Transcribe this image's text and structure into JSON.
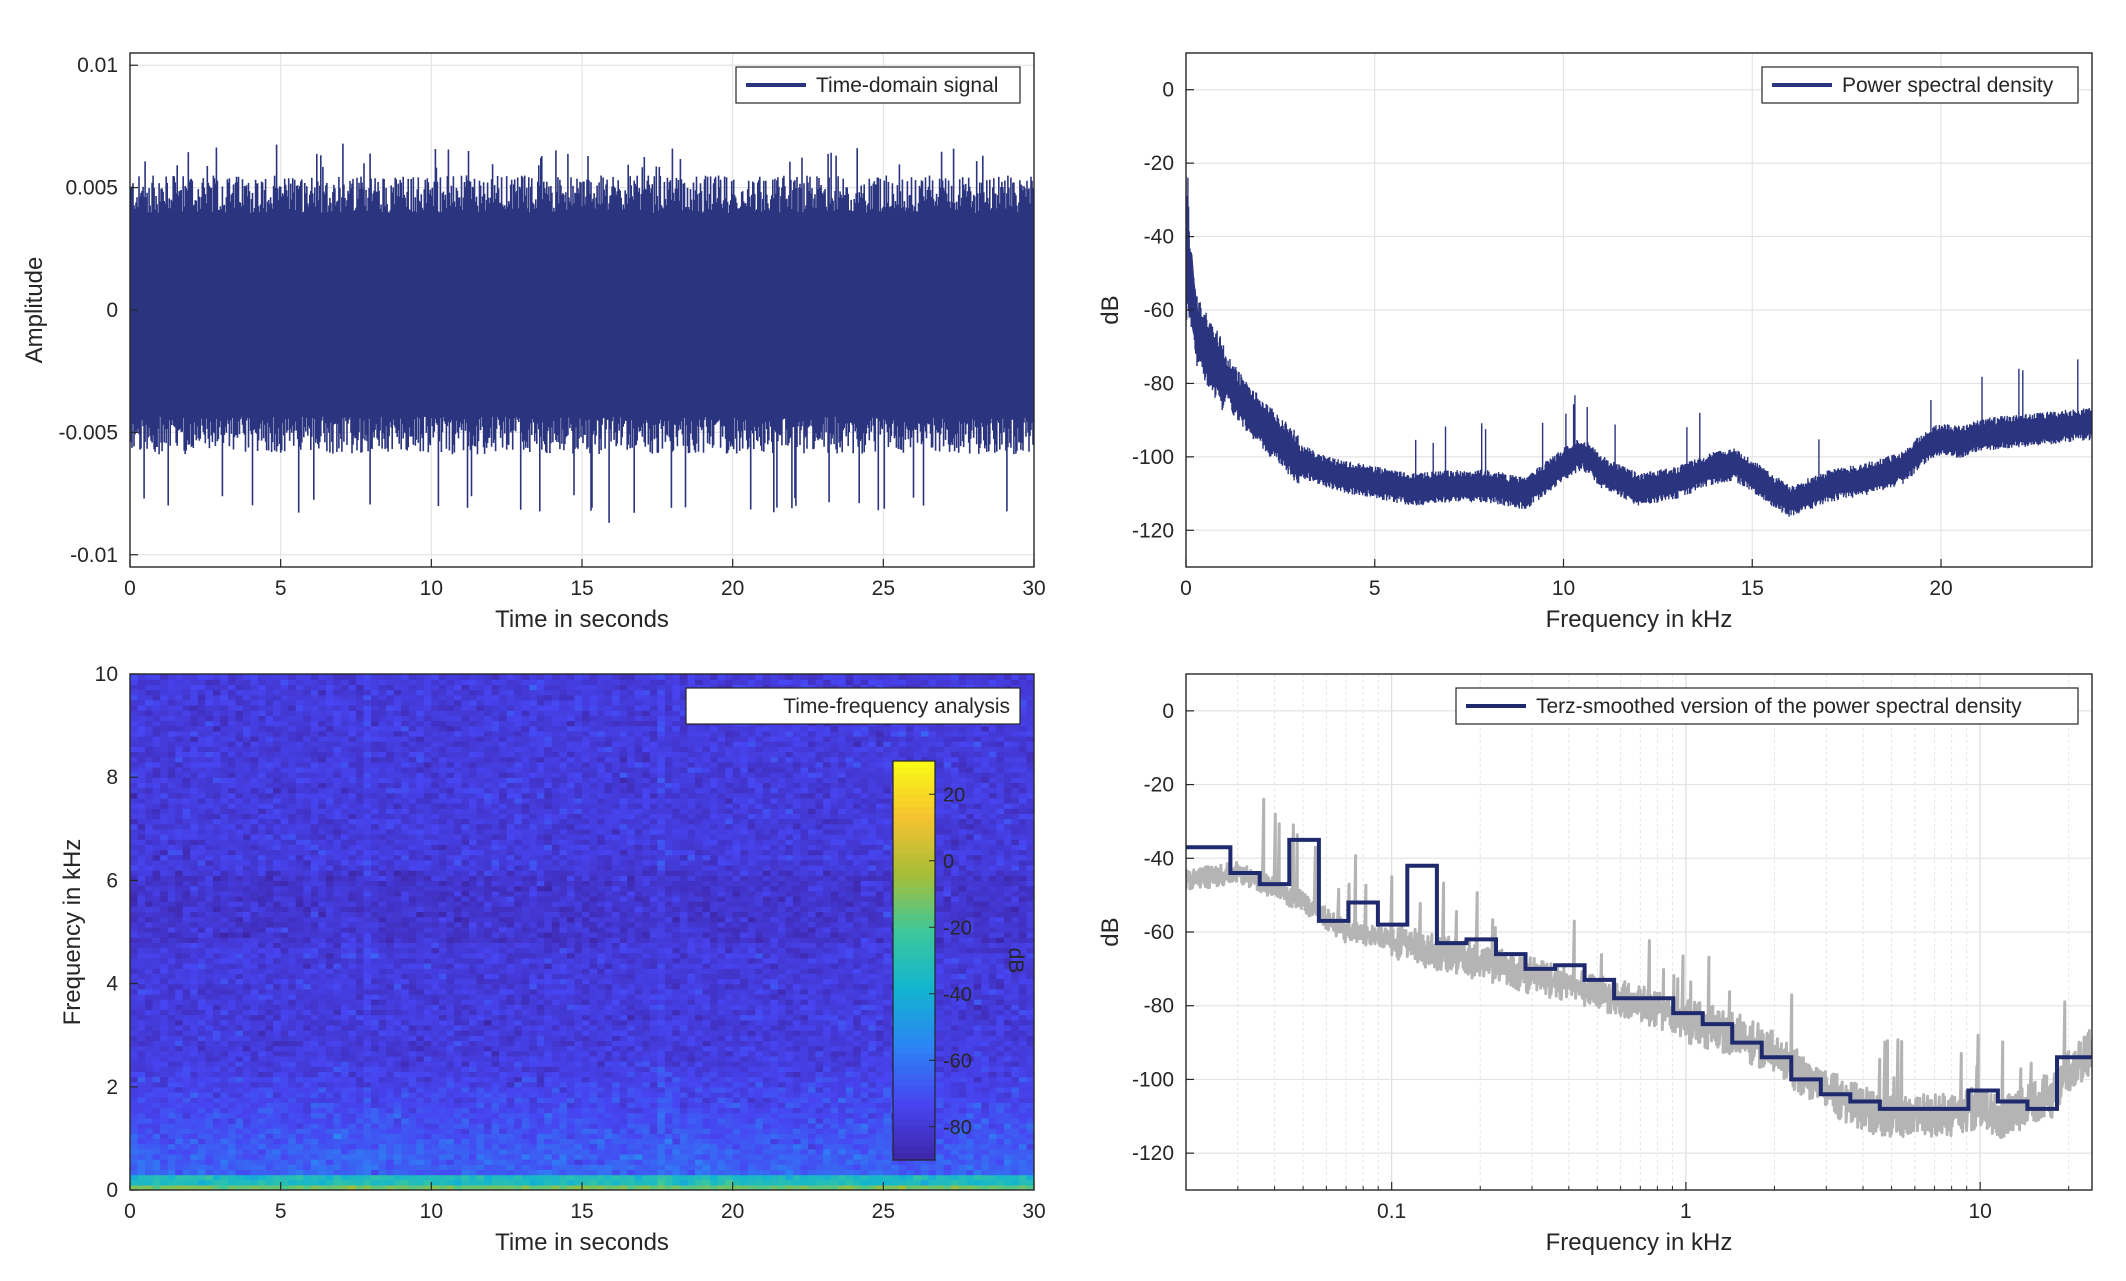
{
  "chart_data": [
    {
      "type": "line",
      "id": "time",
      "legend": "Time-domain signal",
      "legend_position": "top-right",
      "xlabel": "Time in seconds",
      "ylabel": "Amplitude",
      "xlim": [
        0,
        30
      ],
      "ylim": [
        -0.0105,
        0.0105
      ],
      "xticks": [
        0,
        5,
        10,
        15,
        20,
        25,
        30
      ],
      "yticks": [
        -0.01,
        -0.005,
        0,
        0.005,
        0.01
      ],
      "ytick_labels": [
        "-0.01",
        "-0.005",
        "0",
        "0.005",
        "0.01"
      ],
      "grid": true,
      "series_color": "#2b347f",
      "envelope": {
        "typical_peak": 0.0055,
        "max_peak": 0.0068,
        "min_peak": -0.0087
      }
    },
    {
      "type": "line",
      "id": "psd",
      "legend": "Power spectral density",
      "legend_position": "top-right",
      "xlabel": "Frequency in kHz",
      "ylabel": "dB",
      "xlim": [
        0,
        24
      ],
      "ylim": [
        -130,
        10
      ],
      "xticks": [
        0,
        5,
        10,
        15,
        20
      ],
      "yticks": [
        -120,
        -100,
        -80,
        -60,
        -40,
        -20,
        0
      ],
      "grid": true,
      "series_color": "#2b347f",
      "x": [
        0,
        0.05,
        0.1,
        0.2,
        0.3,
        0.5,
        0.8,
        1,
        1.5,
        2,
        2.5,
        3,
        3.5,
        4,
        4.5,
        5,
        6,
        7,
        8,
        9,
        9.5,
        10,
        10.5,
        11,
        12,
        13,
        14,
        14.5,
        15,
        15.5,
        16,
        17,
        18,
        19,
        19.5,
        20,
        20.5,
        21,
        22,
        23,
        24
      ],
      "y": [
        -45,
        -45,
        -52,
        -60,
        -66,
        -70,
        -75,
        -78,
        -85,
        -91,
        -96,
        -101,
        -103,
        -105,
        -106,
        -107,
        -109,
        -108,
        -108,
        -110,
        -106,
        -102,
        -99,
        -104,
        -109,
        -107,
        -103,
        -102,
        -105,
        -109,
        -112,
        -108,
        -106,
        -103,
        -98,
        -95,
        -96,
        -94,
        -93,
        -92,
        -91
      ]
    },
    {
      "type": "heatmap",
      "id": "spectrogram",
      "legend": "Time-frequency analysis",
      "legend_position": "top-right",
      "xlabel": "Time in seconds",
      "ylabel": "Frequency in kHz",
      "xlim": [
        0,
        30
      ],
      "ylim": [
        0,
        10
      ],
      "xticks": [
        0,
        5,
        10,
        15,
        20,
        25,
        30
      ],
      "yticks": [
        0,
        2,
        4,
        6,
        8,
        10
      ],
      "colorbar": {
        "label": "dB",
        "ticks": [
          20,
          0,
          -20,
          -40,
          -60,
          -80
        ],
        "range": [
          -90,
          30
        ],
        "colors": [
          "#3e26a8",
          "#4745f2",
          "#2c85f4",
          "#12b4d0",
          "#3cc89c",
          "#a6be37",
          "#f6c230",
          "#f9fb15"
        ]
      },
      "vertical_streaks_s": [
        7.9,
        17.6
      ],
      "background_level_db": -78
    },
    {
      "type": "line",
      "id": "terz",
      "legend": "Terz-smoothed version of the power spectral density",
      "legend_position": "top-right",
      "xlabel": "Frequency in kHz",
      "ylabel": "dB",
      "xscale": "log",
      "xlim": [
        0.02,
        24
      ],
      "ylim": [
        -130,
        10
      ],
      "xticks": [
        0.1,
        1,
        10
      ],
      "xtick_labels": [
        "0.1",
        "1",
        "10"
      ],
      "yticks": [
        -120,
        -100,
        -80,
        -60,
        -40,
        -20,
        0
      ],
      "grid": true,
      "series": [
        {
          "style": "step",
          "color": "#1f2a6e",
          "x": [
            0.02,
            0.0283,
            0.0356,
            0.0449,
            0.0566,
            0.0713,
            0.0898,
            0.113,
            0.1425,
            0.1796,
            0.2263,
            0.2851,
            0.3592,
            0.4526,
            0.5702,
            0.7184,
            0.9051,
            1.1404,
            1.4368,
            1.8102,
            2.2807,
            2.8735,
            3.6204,
            4.5614,
            5.7469,
            7.2406,
            9.1225,
            11.4936,
            14.4808,
            18.2445,
            24
          ],
          "y": [
            -37,
            -44,
            -47,
            -35,
            -57,
            -52,
            -58,
            -42,
            -63,
            -62,
            -66,
            -70,
            -69,
            -73,
            -78,
            -78,
            -82,
            -85,
            -90,
            -94,
            -100,
            -104,
            -106,
            -108,
            -108,
            -108,
            -103,
            -106,
            -108,
            -94,
            -94
          ]
        },
        {
          "style": "raw",
          "color": "#b4b4b4",
          "x": [
            0.02,
            0.03,
            0.04,
            0.05,
            0.07,
            0.1,
            0.15,
            0.2,
            0.3,
            0.5,
            0.8,
            1,
            1.5,
            2,
            3,
            4,
            5,
            7,
            10,
            12,
            15,
            18,
            20,
            24
          ],
          "y": [
            -46,
            -44,
            -48,
            -52,
            -60,
            -62,
            -66,
            -68,
            -72,
            -76,
            -81,
            -84,
            -88,
            -93,
            -103,
            -108,
            -110,
            -110,
            -108,
            -110,
            -106,
            -104,
            -98,
            -92
          ]
        }
      ]
    }
  ]
}
